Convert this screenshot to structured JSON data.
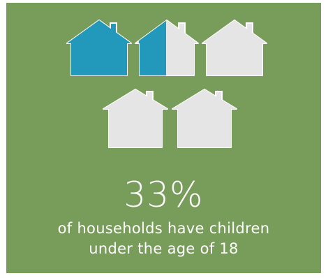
{
  "infographic": {
    "percent": "33%",
    "caption_line1": "of households have children",
    "caption_line2": "under the age of 18",
    "houses": {
      "total": 5,
      "filled_fraction": 0.33,
      "fill_states": [
        1,
        0.5,
        0,
        0,
        0
      ],
      "filled_color": "#2299bb",
      "empty_color": "#e5e5e5",
      "background_color": "#789c5a"
    }
  }
}
